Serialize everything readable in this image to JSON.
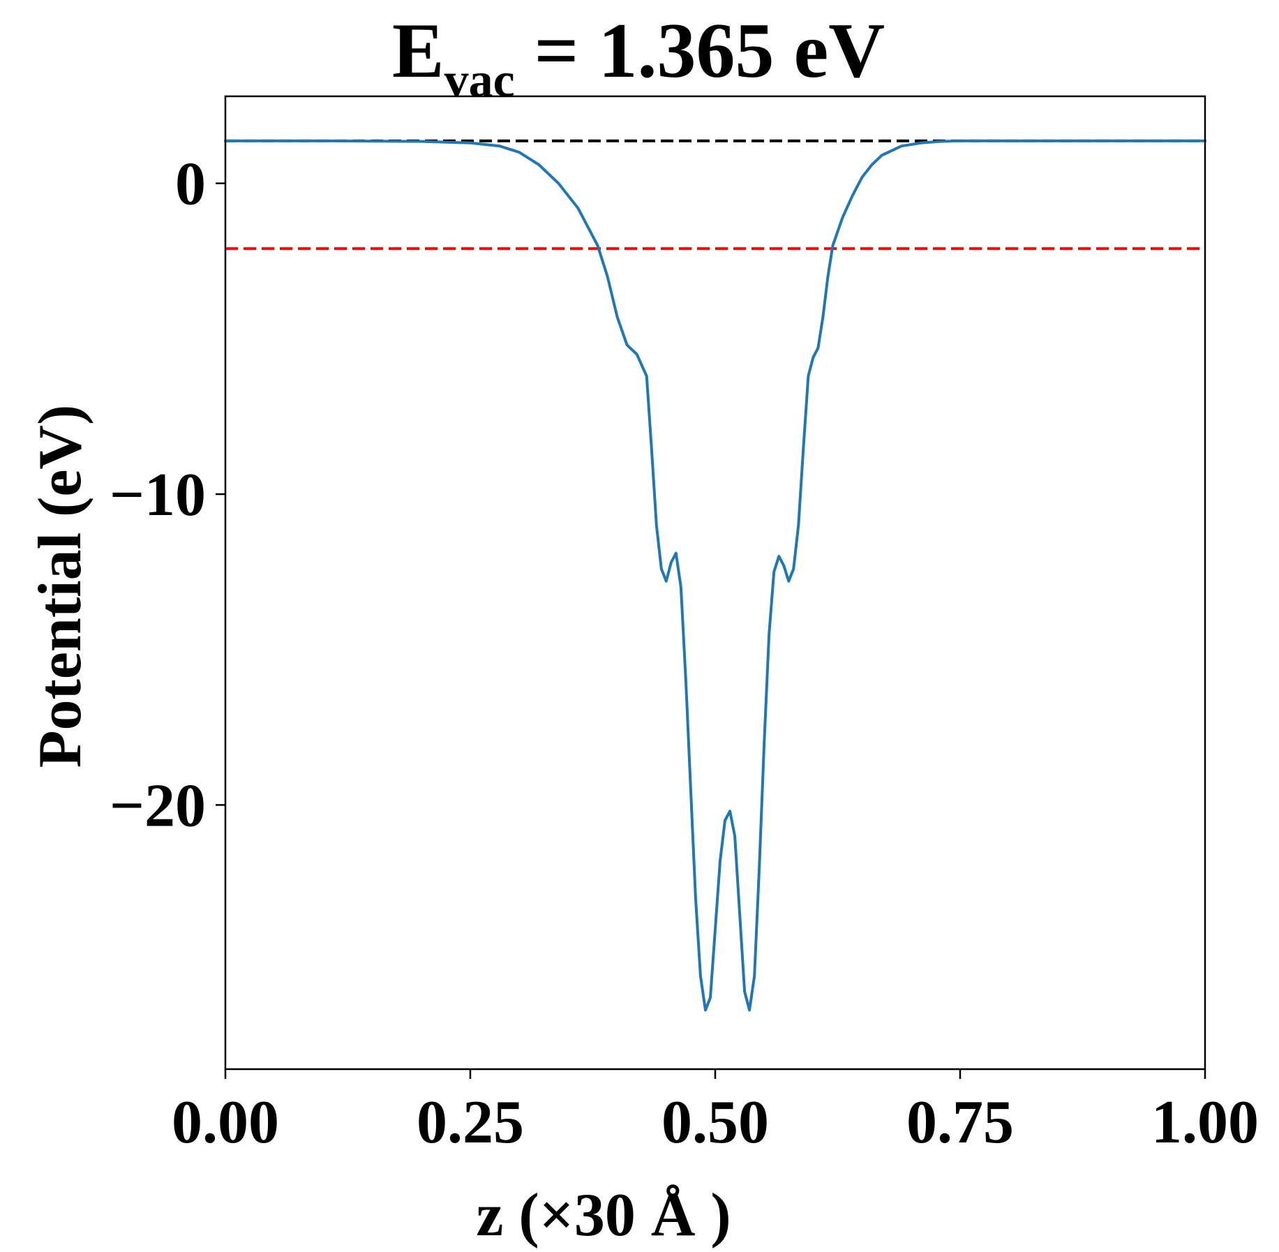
{
  "chart_data": {
    "type": "line",
    "title_main": "E",
    "title_sub": "vac",
    "title_rest": " = 1.365 eV",
    "xlabel": "z (×30 Å )",
    "ylabel": "Potential (eV)",
    "xlim": [
      0,
      1
    ],
    "ylim": [
      -28.5,
      2.8
    ],
    "xticks": [
      0.0,
      0.25,
      0.5,
      0.75,
      1.0
    ],
    "xtick_labels": [
      "0.00",
      "0.25",
      "0.50",
      "0.75",
      "1.00"
    ],
    "yticks": [
      0,
      -10,
      -20
    ],
    "ytick_labels": [
      "0",
      "−10",
      "−20"
    ],
    "grid": false,
    "colors": {
      "potential": "#1f77b4",
      "vacuum": "#000000",
      "fermi": "#ff0000"
    },
    "reference_lines": [
      {
        "y": 1.365,
        "style": "dashed",
        "color": "#000000"
      },
      {
        "y": -2.1,
        "style": "dashed",
        "color": "#ff0000"
      }
    ],
    "series": [
      {
        "color": "#1f77b4",
        "x": [
          0.0,
          0.1,
          0.2,
          0.25,
          0.28,
          0.3,
          0.32,
          0.34,
          0.36,
          0.38,
          0.39,
          0.4,
          0.41,
          0.42,
          0.43,
          0.435,
          0.44,
          0.445,
          0.45,
          0.455,
          0.46,
          0.465,
          0.47,
          0.475,
          0.48,
          0.485,
          0.49,
          0.495,
          0.5,
          0.505,
          0.51,
          0.515,
          0.52,
          0.525,
          0.53,
          0.535,
          0.54,
          0.545,
          0.55,
          0.555,
          0.56,
          0.565,
          0.57,
          0.575,
          0.58,
          0.585,
          0.59,
          0.595,
          0.6,
          0.605,
          0.61,
          0.615,
          0.62,
          0.63,
          0.64,
          0.65,
          0.66,
          0.67,
          0.69,
          0.71,
          0.73,
          0.75,
          0.77,
          0.8,
          0.85,
          0.9,
          1.0
        ],
        "y": [
          1.365,
          1.365,
          1.35,
          1.3,
          1.2,
          1.0,
          0.6,
          0.0,
          -0.8,
          -2.0,
          -3.0,
          -4.3,
          -5.2,
          -5.5,
          -6.2,
          -8.5,
          -11.0,
          -12.4,
          -12.8,
          -12.2,
          -11.9,
          -13.0,
          -16.0,
          -19.5,
          -23.0,
          -25.5,
          -26.6,
          -26.2,
          -24.0,
          -21.8,
          -20.5,
          -20.2,
          -21.0,
          -23.5,
          -26.0,
          -26.6,
          -25.5,
          -22.0,
          -18.0,
          -14.5,
          -12.5,
          -12.0,
          -12.3,
          -12.8,
          -12.4,
          -11.0,
          -8.5,
          -6.2,
          -5.6,
          -5.3,
          -4.3,
          -3.0,
          -2.0,
          -1.1,
          -0.4,
          0.2,
          0.6,
          0.9,
          1.2,
          1.3,
          1.35,
          1.365,
          1.365,
          1.365,
          1.365,
          1.365,
          1.365
        ]
      }
    ]
  }
}
